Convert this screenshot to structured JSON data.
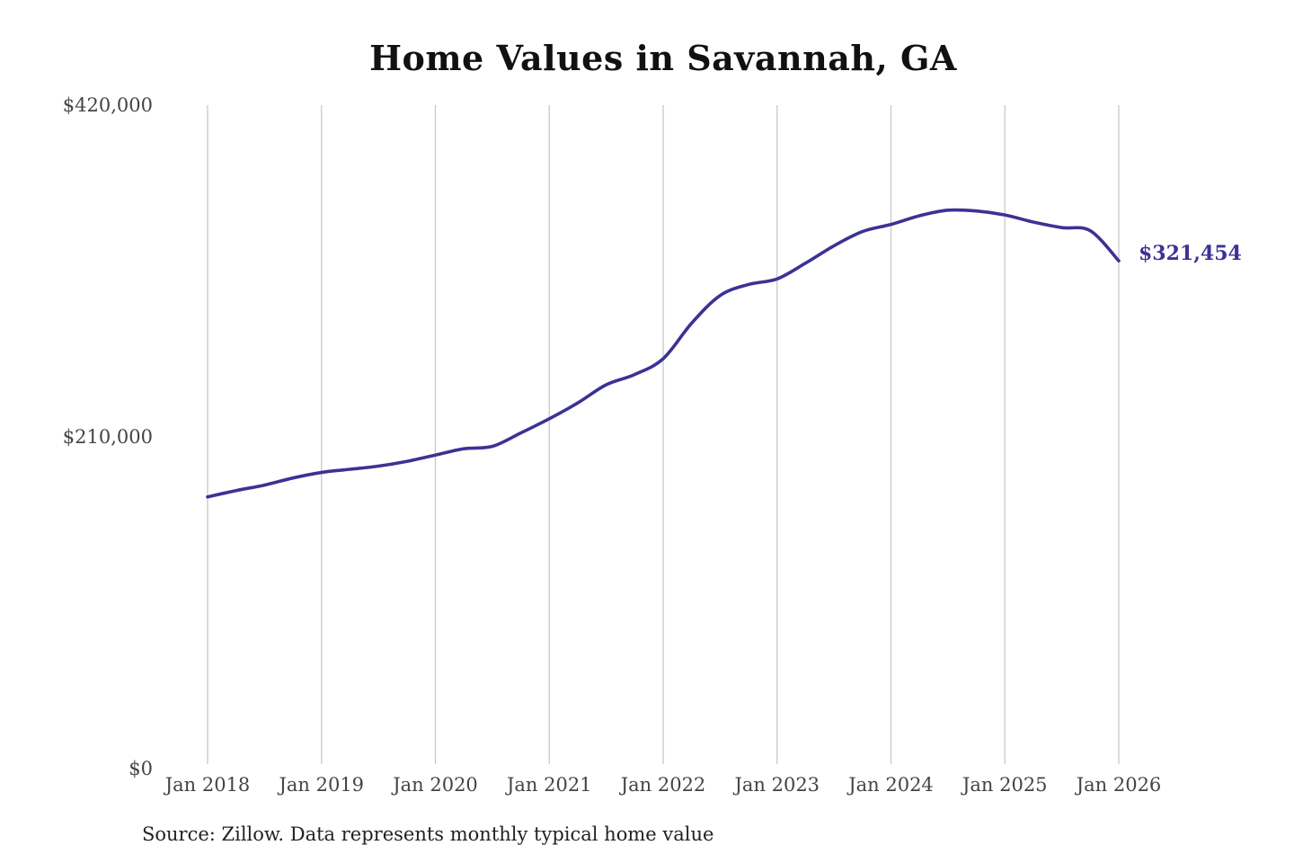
{
  "chart_data": {
    "type": "line",
    "title": "Home Values in Savannah, GA",
    "source": "Source: Zillow. Data represents monthly typical home value",
    "xlabel": "",
    "ylabel": "",
    "x_ticks": [
      "Jan 2018",
      "Jan 2019",
      "Jan 2020",
      "Jan 2021",
      "Jan 2022",
      "Jan 2023",
      "Jan 2024",
      "Jan 2025",
      "Jan 2026"
    ],
    "y_ticks": [
      "$0",
      "$210,000",
      "$420,000"
    ],
    "y_tick_values": [
      0,
      210000,
      420000
    ],
    "ylim": [
      0,
      420000
    ],
    "xlim": [
      "2018-01",
      "2026-01"
    ],
    "grid": "vertical",
    "end_label": "$321,454",
    "colors": {
      "line": "#3b3295",
      "grid": "#c8c8c8",
      "end_label": "#3b3295"
    },
    "series": [
      {
        "x": [
          "2018-01",
          "2018-04",
          "2018-07",
          "2018-10",
          "2019-01",
          "2019-04",
          "2019-07",
          "2019-10",
          "2020-01",
          "2020-04",
          "2020-07",
          "2020-10",
          "2021-01",
          "2021-04",
          "2021-07",
          "2021-10",
          "2022-01",
          "2022-04",
          "2022-07",
          "2022-10",
          "2023-01",
          "2023-04",
          "2023-07",
          "2023-10",
          "2024-01",
          "2024-04",
          "2024-07",
          "2024-10",
          "2025-01",
          "2025-04",
          "2025-07",
          "2025-10",
          "2026-01"
        ],
        "values": [
          172000,
          176000,
          179500,
          184000,
          187500,
          189500,
          191500,
          194500,
          198500,
          202500,
          204000,
          212500,
          221500,
          231500,
          243000,
          249500,
          259500,
          282000,
          299500,
          306500,
          310000,
          320000,
          331000,
          340000,
          344500,
          350000,
          353500,
          353000,
          350500,
          346000,
          342500,
          340500,
          321454
        ]
      }
    ]
  }
}
